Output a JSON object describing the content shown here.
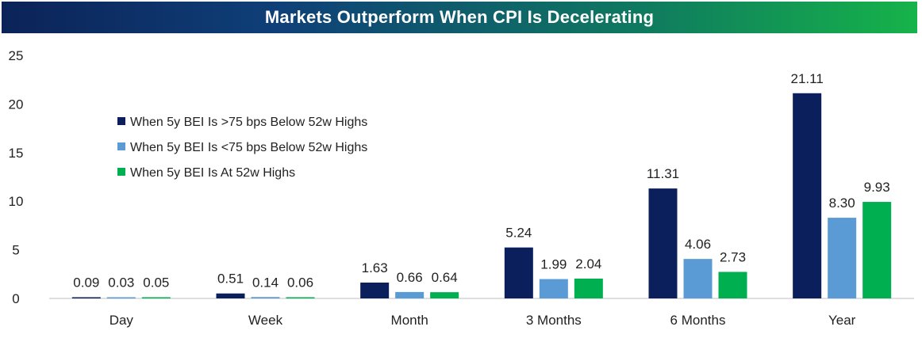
{
  "title": "Markets Outperform When CPI Is Decelerating",
  "chart_data": {
    "type": "bar",
    "categories": [
      "Day",
      "Week",
      "Month",
      "3 Months",
      "6 Months",
      "Year"
    ],
    "series": [
      {
        "name": "When 5y BEI Is >75 bps Below 52w Highs",
        "color": "#0b1f5c",
        "values": [
          0.09,
          0.51,
          1.63,
          5.24,
          11.31,
          21.11
        ],
        "labels": [
          "0.09",
          "0.51",
          "1.63",
          "5.24",
          "11.31",
          "21.11"
        ]
      },
      {
        "name": "When 5y BEI Is <75 bps Below 52w Highs",
        "color": "#5b9bd5",
        "values": [
          0.03,
          0.14,
          0.66,
          1.99,
          4.06,
          8.3
        ],
        "labels": [
          "0.03",
          "0.14",
          "0.66",
          "1.99",
          "4.06",
          "8.30"
        ]
      },
      {
        "name": "When 5y BEI Is At 52w Highs",
        "color": "#00b050",
        "values": [
          0.05,
          0.06,
          0.64,
          2.04,
          2.73,
          9.93
        ],
        "labels": [
          "0.05",
          "0.06",
          "0.64",
          "2.04",
          "2.73",
          "9.93"
        ]
      }
    ],
    "yticks": [
      "0",
      "5",
      "10",
      "15",
      "20",
      "25"
    ],
    "ylim": [
      0,
      25
    ],
    "grid": false,
    "legend_position": "top-left"
  }
}
